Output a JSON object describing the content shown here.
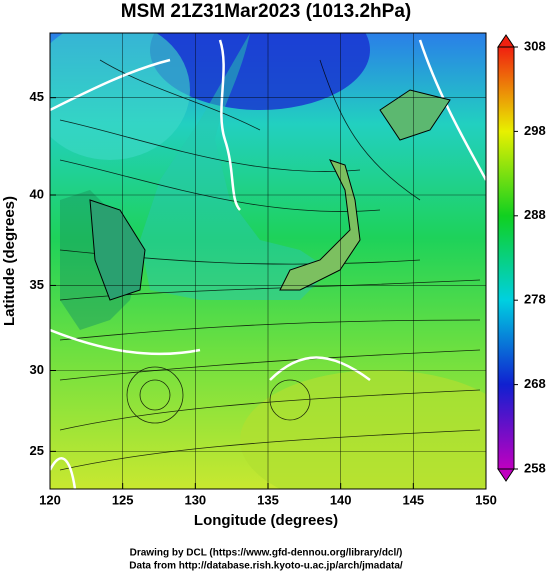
{
  "chart_data": {
    "type": "map",
    "title": "MSM 21Z31Mar2023 (1013.2hPa)",
    "xlabel": "Longitude (degrees)",
    "ylabel": "Latitude  (degrees)",
    "xlim": [
      120,
      150
    ],
    "ylim": [
      22.6,
      48.1
    ],
    "xticks": [
      120,
      125,
      130,
      135,
      140,
      145,
      150
    ],
    "yticks": [
      25,
      30,
      35,
      40,
      45
    ],
    "grid": true,
    "colorbar": {
      "lim": [
        258,
        308
      ],
      "ticks": [
        258,
        268,
        278,
        288,
        298,
        308
      ]
    },
    "credits": [
      "Drawing by DCL (https://www.gfd-dennou.org/library/dcl/)",
      "Data from http://database.rish.kyoto-u.ac.jp/arch/jmadata/"
    ]
  }
}
